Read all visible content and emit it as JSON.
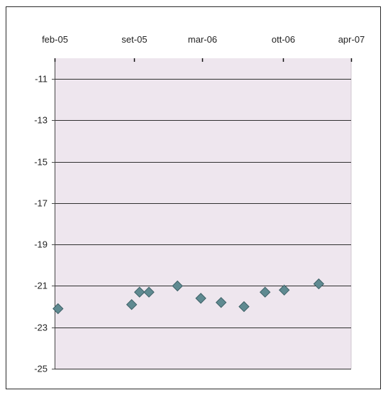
{
  "chart_data": {
    "type": "scatter",
    "title": "",
    "xlabel": "",
    "ylabel": "",
    "x_axis_position": "top",
    "x_tick_labels": [
      "feb-05",
      "set-05",
      "mar-06",
      "ott-06",
      "apr-07"
    ],
    "x_ticks": [
      "2005-02",
      "2005-09",
      "2006-03",
      "2006-10",
      "2007-04"
    ],
    "xlim": [
      "2005-02",
      "2007-04"
    ],
    "y_tick_labels": [
      "-11",
      "-13",
      "-15",
      "-17",
      "-19",
      "-21",
      "-23",
      "-25"
    ],
    "y_ticks": [
      -11,
      -13,
      -15,
      -17,
      -19,
      -21,
      -23,
      -25
    ],
    "ylim": [
      -25,
      -10
    ],
    "grid": "horizontal",
    "series": [
      {
        "marker": "diamond",
        "points": [
          {
            "x": "2005-02-10",
            "y": -22.1
          },
          {
            "x": "2005-08-25",
            "y": -21.9
          },
          {
            "x": "2005-09-15",
            "y": -21.3
          },
          {
            "x": "2005-10-10",
            "y": -21.3
          },
          {
            "x": "2005-12-25",
            "y": -21.0
          },
          {
            "x": "2006-02-25",
            "y": -21.6
          },
          {
            "x": "2006-04-20",
            "y": -21.8
          },
          {
            "x": "2006-06-20",
            "y": -22.0
          },
          {
            "x": "2006-08-15",
            "y": -21.3
          },
          {
            "x": "2006-10-05",
            "y": -21.2
          },
          {
            "x": "2007-01-05",
            "y": -20.9
          }
        ]
      }
    ]
  },
  "colors": {
    "plot_background": "#eee6ee",
    "marker": "#5f8a91",
    "marker_edge": "#3d6066",
    "gridline": "#2f2f2f",
    "axis": "#444444",
    "frame": "#2a2a2a"
  }
}
